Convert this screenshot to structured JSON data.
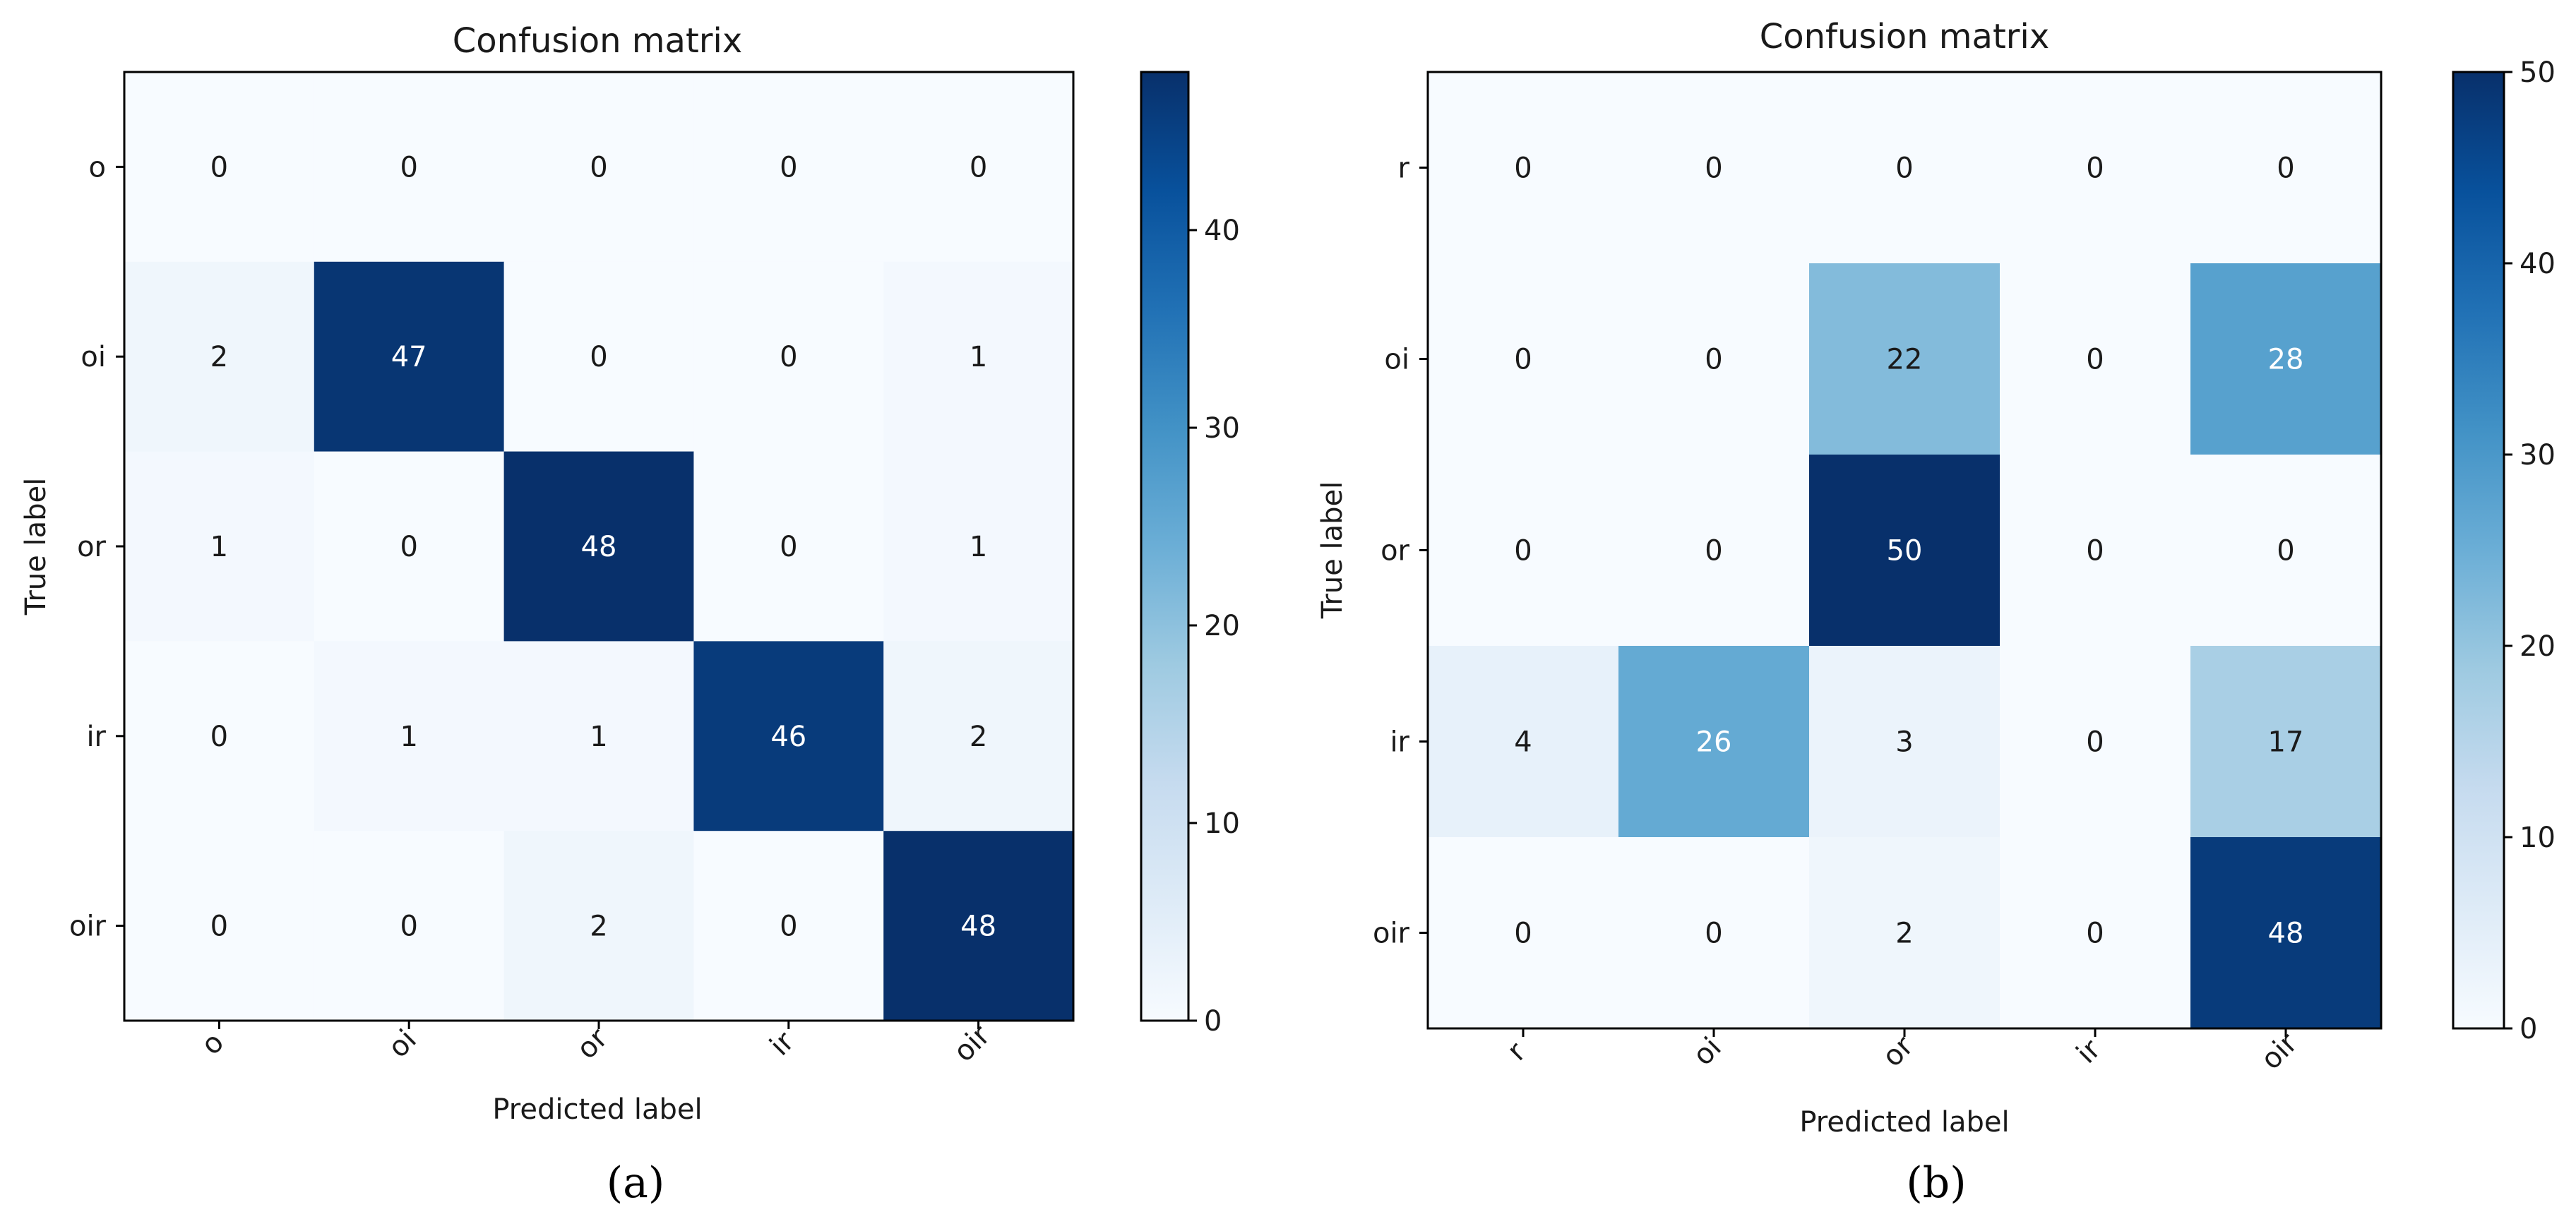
{
  "chart_data": [
    {
      "type": "heatmap",
      "title": "Confusion matrix",
      "xlabel": "Predicted label",
      "ylabel": "True label",
      "x_tick_labels": [
        "o",
        "oi",
        "or",
        "ir",
        "oir"
      ],
      "y_tick_labels": [
        "o",
        "oi",
        "or",
        "ir",
        "oir"
      ],
      "values": [
        [
          0,
          0,
          0,
          0,
          0
        ],
        [
          2,
          47,
          0,
          0,
          1
        ],
        [
          1,
          0,
          48,
          0,
          1
        ],
        [
          0,
          1,
          1,
          46,
          2
        ],
        [
          0,
          0,
          2,
          0,
          48
        ]
      ],
      "colormap": "Blues",
      "color_range": [
        0,
        48
      ],
      "colorbar_ticks": [
        "0",
        "10",
        "20",
        "30",
        "40"
      ],
      "caption": "(a)"
    },
    {
      "type": "heatmap",
      "title": "Confusion matrix",
      "xlabel": "Predicted label",
      "ylabel": "True label",
      "x_tick_labels": [
        "r",
        "oi",
        "or",
        "ir",
        "oir"
      ],
      "y_tick_labels": [
        "r",
        "oi",
        "or",
        "ir",
        "oir"
      ],
      "values": [
        [
          0,
          0,
          0,
          0,
          0
        ],
        [
          0,
          0,
          22,
          0,
          28
        ],
        [
          0,
          0,
          50,
          0,
          0
        ],
        [
          4,
          26,
          3,
          0,
          17
        ],
        [
          0,
          0,
          2,
          0,
          48
        ]
      ],
      "colormap": "Blues",
      "color_range": [
        0,
        50
      ],
      "colorbar_ticks": [
        "0",
        "10",
        "20",
        "30",
        "40",
        "50"
      ],
      "caption": "(b)"
    }
  ]
}
